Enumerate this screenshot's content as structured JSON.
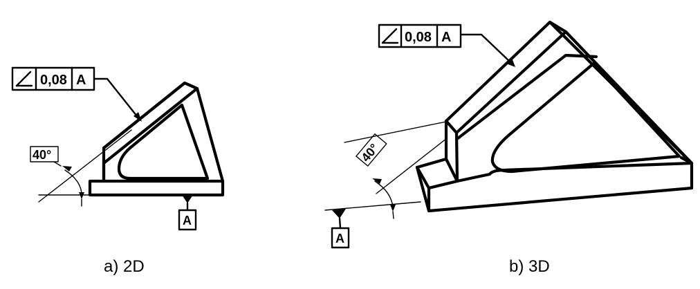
{
  "figure_2d": {
    "caption": "a) 2D",
    "fcf": {
      "symbol": "angularity-icon",
      "tolerance": "0,08",
      "datum": "A"
    },
    "angle": "40°",
    "datum_label": "A"
  },
  "figure_3d": {
    "caption": "b) 3D",
    "fcf": {
      "symbol": "angularity-icon",
      "tolerance": "0,08",
      "datum": "A"
    },
    "angle": "40°",
    "datum_label": "A"
  }
}
